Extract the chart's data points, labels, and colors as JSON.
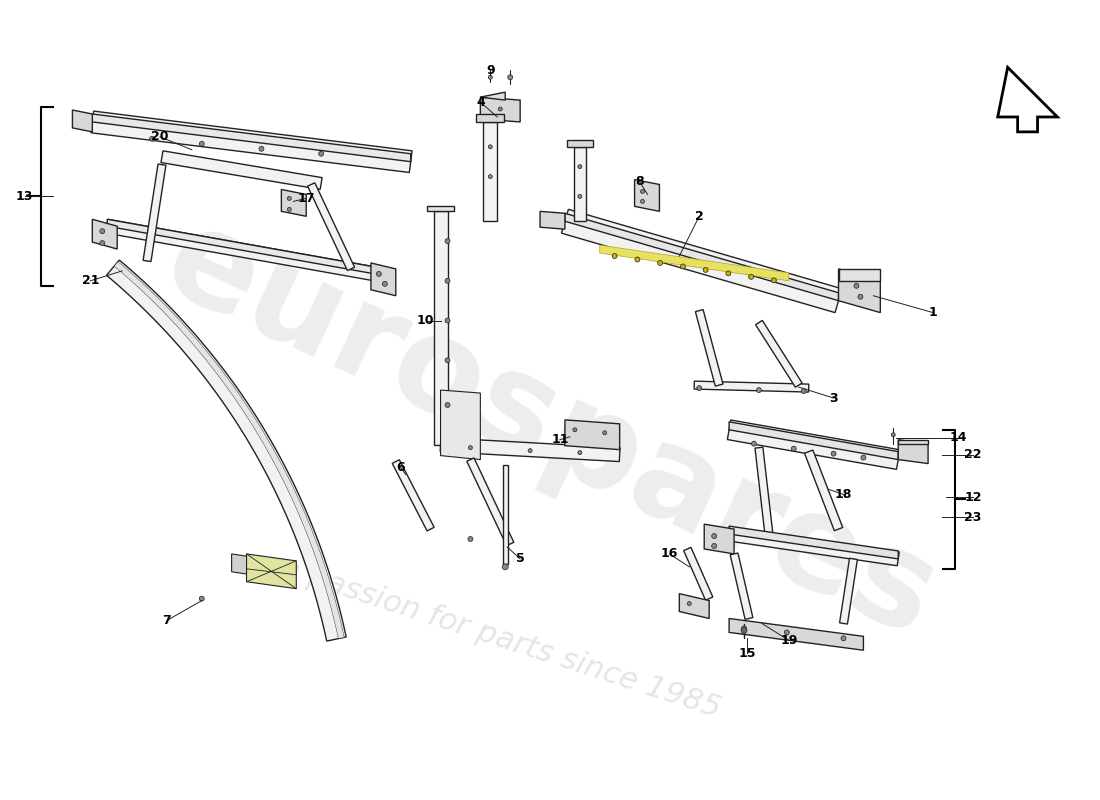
{
  "bg_color": "#ffffff",
  "watermark1": "eurospares",
  "watermark2": "a passion for parts since 1985",
  "fig_width": 11.0,
  "fig_height": 8.0,
  "line_color": "#222222",
  "fill_color": "#f2f2f2",
  "fill_dark": "#d8d8d8",
  "fill_yellow": "#e8e060"
}
